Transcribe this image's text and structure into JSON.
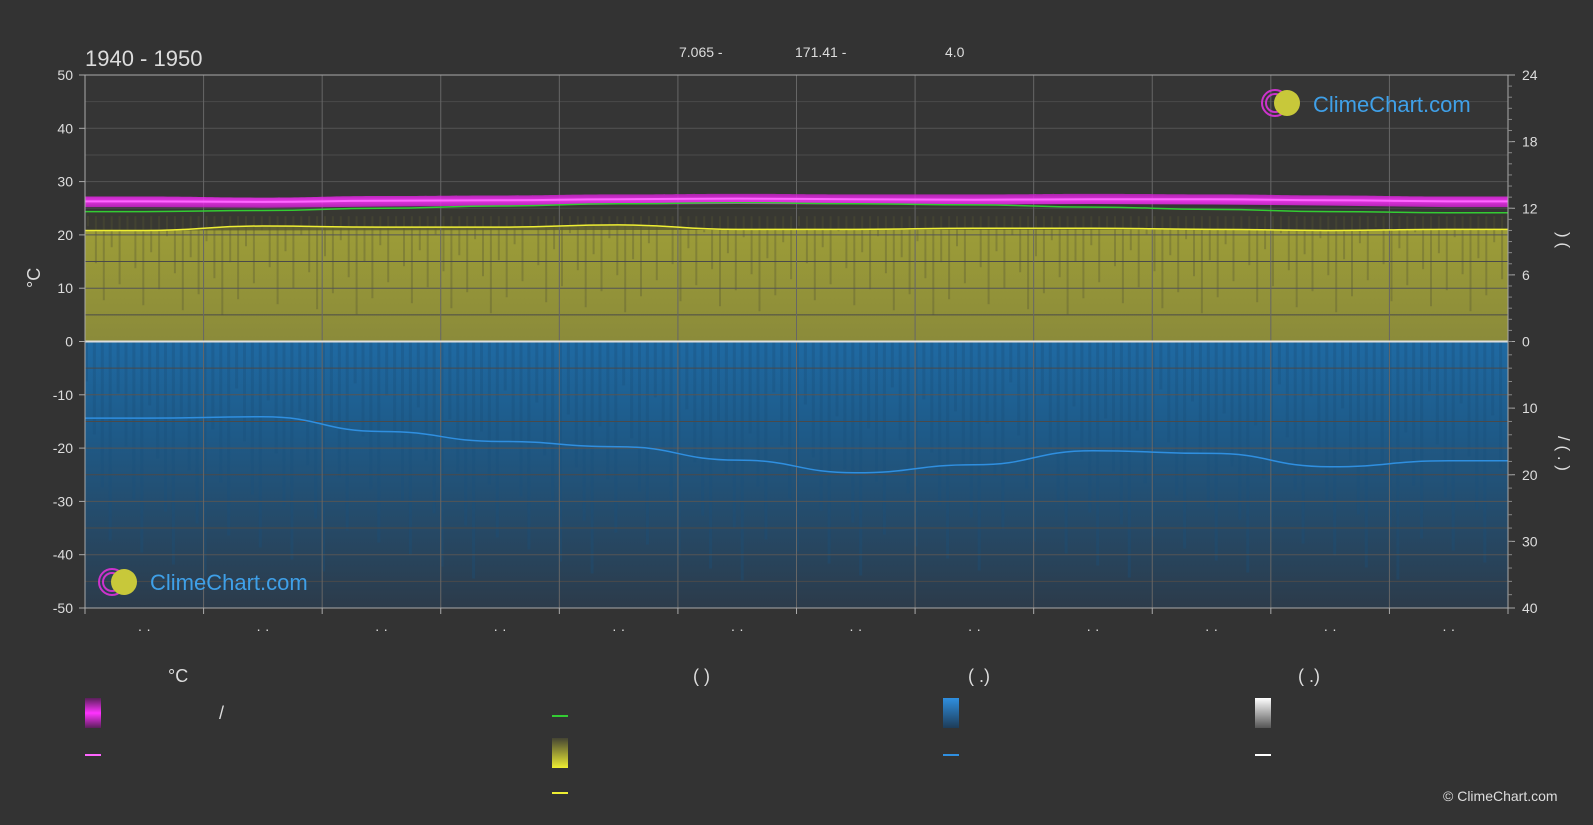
{
  "header": {
    "title": "1940 - 1950",
    "stats": [
      "7.065 -",
      "171.41 -",
      "4.0"
    ]
  },
  "axes": {
    "left_unit": "°C",
    "right_label_top": ")       (",
    "right_label_bottom": "/     (  .  )"
  },
  "legend": {
    "col1_head": "°C",
    "col1_slash": "/",
    "col2_head": "(          )",
    "col3_head": "(   .)",
    "col4_head": "(   .)"
  },
  "branding": {
    "logo_text": "ClimeChart.com",
    "copyright": "© ClimeChart.com"
  },
  "colors": {
    "background": "#333333",
    "temp_band": "#ff33ff",
    "temp_mean": "#ff66ff",
    "daylight": "#33cc33",
    "sunshine_fill": "#999933",
    "sunshine_line": "#eeee33",
    "precip_fill": "#1f6fae",
    "precip_line": "#2f8fe0",
    "snow": "#ffffff",
    "grid": "#555555",
    "zero": "#dddddd"
  },
  "chart_data": {
    "type": "line",
    "title": "1940 - 1950",
    "x_ticks": [
      "· ·",
      "· ·",
      "· ·",
      "· ·",
      "· ·",
      "· ·",
      "· ·",
      "· ·",
      "· ·",
      "· ·",
      "· ·",
      "· ·"
    ],
    "ylabel": "°C",
    "ylim": [
      -50,
      50
    ],
    "yticks": [
      50,
      40,
      30,
      20,
      10,
      0,
      -10,
      -20,
      -30,
      -40,
      -50
    ],
    "y2_top_ticks": [
      24,
      18,
      12,
      6,
      0
    ],
    "y2_top_range": [
      0,
      24
    ],
    "y2_bottom_ticks": [
      0,
      10,
      20,
      30,
      40
    ],
    "y2_bottom_range": [
      0,
      40
    ],
    "grid": true,
    "series": [
      {
        "key": "temp_max",
        "values": [
          27.2,
          27.0,
          27.3,
          27.4,
          27.6,
          27.7,
          27.6,
          27.6,
          27.7,
          27.6,
          27.4,
          27.2
        ]
      },
      {
        "key": "temp_min",
        "values": [
          25.2,
          25.1,
          25.3,
          25.5,
          25.7,
          25.8,
          25.7,
          25.7,
          25.8,
          25.7,
          25.5,
          25.2
        ]
      },
      {
        "key": "temp_mean",
        "values": [
          26.3,
          26.2,
          26.4,
          26.5,
          26.7,
          26.8,
          26.7,
          26.6,
          26.7,
          26.7,
          26.5,
          26.3
        ]
      },
      {
        "key": "daylight",
        "values": [
          11.7,
          11.8,
          12.0,
          12.2,
          12.4,
          12.5,
          12.4,
          12.3,
          12.1,
          11.9,
          11.7,
          11.6
        ]
      },
      {
        "key": "sunshine",
        "values": [
          10.0,
          10.4,
          10.3,
          10.3,
          10.5,
          10.1,
          10.1,
          10.2,
          10.2,
          10.1,
          10.0,
          10.1
        ]
      },
      {
        "key": "precipitation",
        "values": [
          11.5,
          11.3,
          13.5,
          15.0,
          15.8,
          17.8,
          19.7,
          18.5,
          16.4,
          16.8,
          18.8,
          17.9
        ]
      }
    ]
  }
}
